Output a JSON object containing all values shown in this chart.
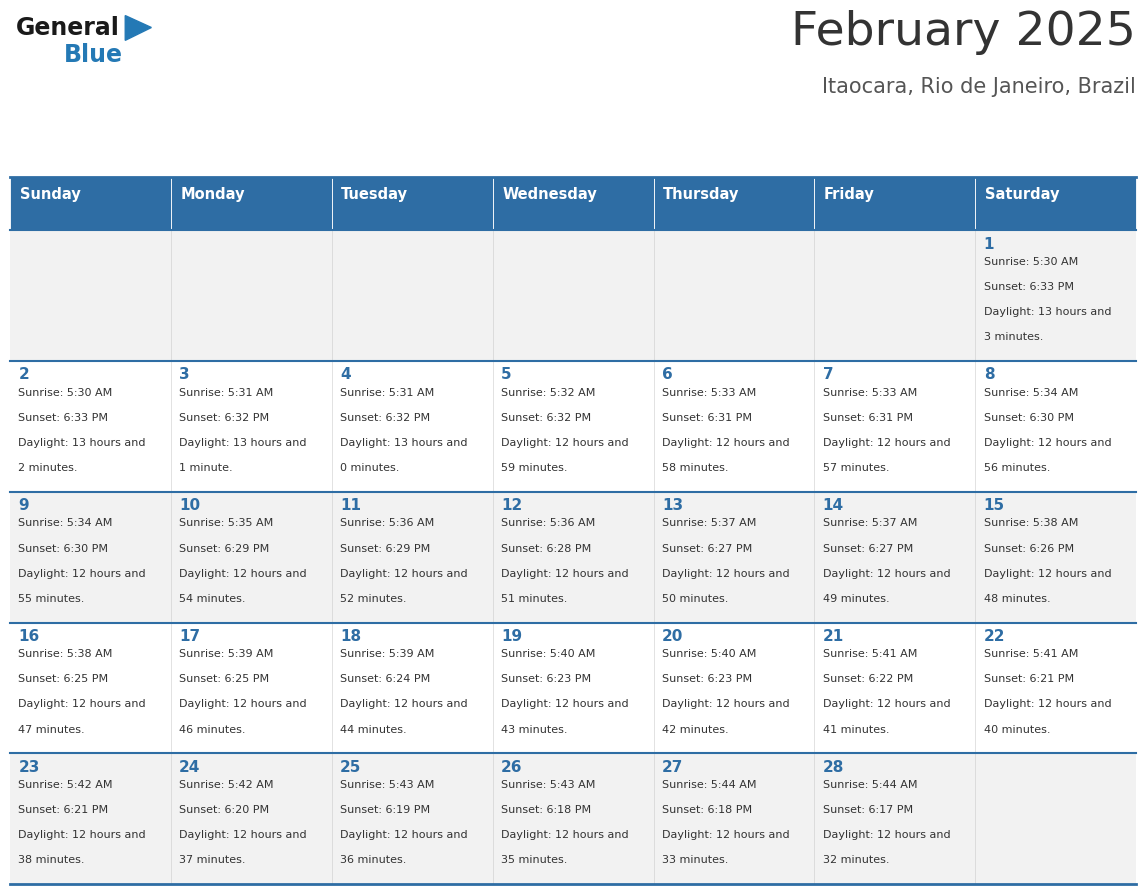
{
  "title": "February 2025",
  "subtitle": "Itaocara, Rio de Janeiro, Brazil",
  "header_bg": "#2e6da4",
  "header_text_color": "#ffffff",
  "cell_bg_odd": "#f2f2f2",
  "cell_bg_even": "#ffffff",
  "day_names": [
    "Sunday",
    "Monday",
    "Tuesday",
    "Wednesday",
    "Thursday",
    "Friday",
    "Saturday"
  ],
  "title_color": "#333333",
  "subtitle_color": "#555555",
  "day_num_color": "#2e6da4",
  "info_color": "#333333",
  "border_color": "#2e6da4",
  "logo_general_color": "#1a1a1a",
  "logo_blue_color": "#2479b5",
  "calendar_data": [
    [
      null,
      null,
      null,
      null,
      null,
      null,
      {
        "day": 1,
        "sunrise": "5:30 AM",
        "sunset": "6:33 PM",
        "daylight": "13 hours and 3 minutes."
      }
    ],
    [
      {
        "day": 2,
        "sunrise": "5:30 AM",
        "sunset": "6:33 PM",
        "daylight": "13 hours and 2 minutes."
      },
      {
        "day": 3,
        "sunrise": "5:31 AM",
        "sunset": "6:32 PM",
        "daylight": "13 hours and 1 minute."
      },
      {
        "day": 4,
        "sunrise": "5:31 AM",
        "sunset": "6:32 PM",
        "daylight": "13 hours and 0 minutes."
      },
      {
        "day": 5,
        "sunrise": "5:32 AM",
        "sunset": "6:32 PM",
        "daylight": "12 hours and 59 minutes."
      },
      {
        "day": 6,
        "sunrise": "5:33 AM",
        "sunset": "6:31 PM",
        "daylight": "12 hours and 58 minutes."
      },
      {
        "day": 7,
        "sunrise": "5:33 AM",
        "sunset": "6:31 PM",
        "daylight": "12 hours and 57 minutes."
      },
      {
        "day": 8,
        "sunrise": "5:34 AM",
        "sunset": "6:30 PM",
        "daylight": "12 hours and 56 minutes."
      }
    ],
    [
      {
        "day": 9,
        "sunrise": "5:34 AM",
        "sunset": "6:30 PM",
        "daylight": "12 hours and 55 minutes."
      },
      {
        "day": 10,
        "sunrise": "5:35 AM",
        "sunset": "6:29 PM",
        "daylight": "12 hours and 54 minutes."
      },
      {
        "day": 11,
        "sunrise": "5:36 AM",
        "sunset": "6:29 PM",
        "daylight": "12 hours and 52 minutes."
      },
      {
        "day": 12,
        "sunrise": "5:36 AM",
        "sunset": "6:28 PM",
        "daylight": "12 hours and 51 minutes."
      },
      {
        "day": 13,
        "sunrise": "5:37 AM",
        "sunset": "6:27 PM",
        "daylight": "12 hours and 50 minutes."
      },
      {
        "day": 14,
        "sunrise": "5:37 AM",
        "sunset": "6:27 PM",
        "daylight": "12 hours and 49 minutes."
      },
      {
        "day": 15,
        "sunrise": "5:38 AM",
        "sunset": "6:26 PM",
        "daylight": "12 hours and 48 minutes."
      }
    ],
    [
      {
        "day": 16,
        "sunrise": "5:38 AM",
        "sunset": "6:25 PM",
        "daylight": "12 hours and 47 minutes."
      },
      {
        "day": 17,
        "sunrise": "5:39 AM",
        "sunset": "6:25 PM",
        "daylight": "12 hours and 46 minutes."
      },
      {
        "day": 18,
        "sunrise": "5:39 AM",
        "sunset": "6:24 PM",
        "daylight": "12 hours and 44 minutes."
      },
      {
        "day": 19,
        "sunrise": "5:40 AM",
        "sunset": "6:23 PM",
        "daylight": "12 hours and 43 minutes."
      },
      {
        "day": 20,
        "sunrise": "5:40 AM",
        "sunset": "6:23 PM",
        "daylight": "12 hours and 42 minutes."
      },
      {
        "day": 21,
        "sunrise": "5:41 AM",
        "sunset": "6:22 PM",
        "daylight": "12 hours and 41 minutes."
      },
      {
        "day": 22,
        "sunrise": "5:41 AM",
        "sunset": "6:21 PM",
        "daylight": "12 hours and 40 minutes."
      }
    ],
    [
      {
        "day": 23,
        "sunrise": "5:42 AM",
        "sunset": "6:21 PM",
        "daylight": "12 hours and 38 minutes."
      },
      {
        "day": 24,
        "sunrise": "5:42 AM",
        "sunset": "6:20 PM",
        "daylight": "12 hours and 37 minutes."
      },
      {
        "day": 25,
        "sunrise": "5:43 AM",
        "sunset": "6:19 PM",
        "daylight": "12 hours and 36 minutes."
      },
      {
        "day": 26,
        "sunrise": "5:43 AM",
        "sunset": "6:18 PM",
        "daylight": "12 hours and 35 minutes."
      },
      {
        "day": 27,
        "sunrise": "5:44 AM",
        "sunset": "6:18 PM",
        "daylight": "12 hours and 33 minutes."
      },
      {
        "day": 28,
        "sunrise": "5:44 AM",
        "sunset": "6:17 PM",
        "daylight": "12 hours and 32 minutes."
      },
      null
    ]
  ]
}
